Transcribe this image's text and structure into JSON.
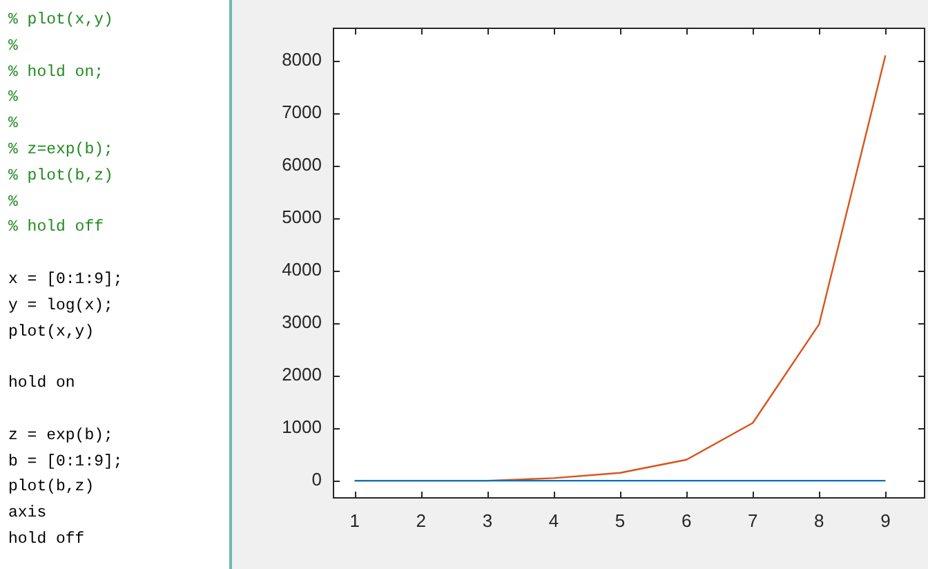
{
  "chart_data": {
    "type": "line",
    "x": [
      1,
      2,
      3,
      4,
      5,
      6,
      7,
      8,
      9
    ],
    "series": [
      {
        "color": "#0072bd",
        "values": [
          0,
          0,
          0,
          0,
          0,
          0,
          0,
          0,
          0
        ]
      },
      {
        "color": "#d95319",
        "values": [
          0,
          0,
          0,
          50,
          150,
          400,
          1100,
          2980,
          8100
        ]
      }
    ],
    "xlim": [
      0.67,
      9.6
    ],
    "xticks": [
      1,
      2,
      3,
      4,
      5,
      6,
      7,
      8,
      9
    ],
    "ylim": [
      -340,
      8630
    ],
    "yticks": [
      0,
      1000,
      2000,
      3000,
      4000,
      5000,
      6000,
      7000,
      8000
    ],
    "grid": false,
    "legend": false,
    "marker": "none",
    "line_style": "solid",
    "annotations": [
      "% plot(x,y)",
      "%",
      "% hold on;",
      "%",
      "%",
      "% z=exp(b);",
      "% plot(b,z)",
      "%",
      "% hold off",
      "x = [0:1:9];",
      "y = log(x);",
      "plot(x,y)",
      "hold on",
      "z = exp(b);",
      "b = [0:1:9];",
      "plot(b,z)",
      "axis",
      "hold off"
    ]
  }
}
